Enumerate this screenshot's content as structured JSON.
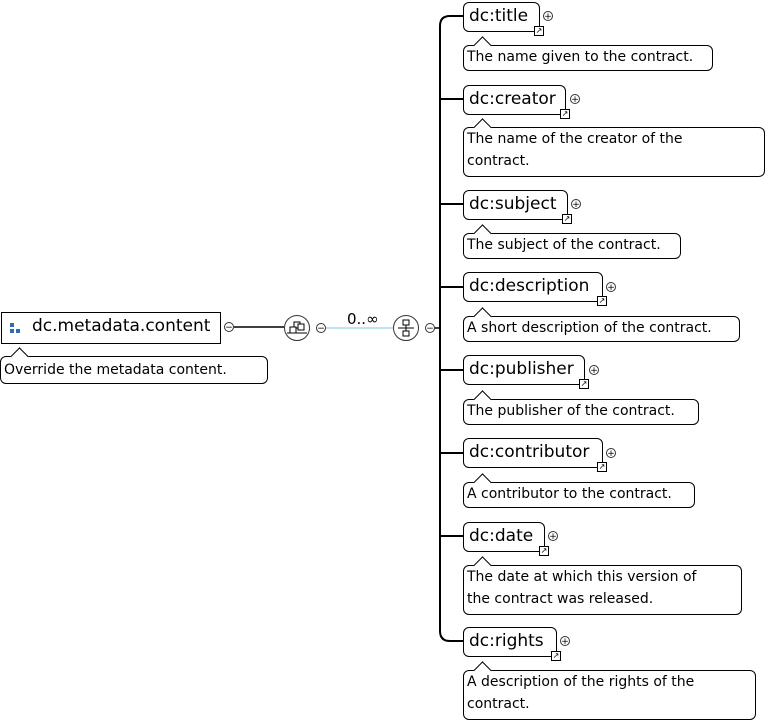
{
  "root": {
    "name": "dc.metadata.content",
    "annotation": "Override the metadata content."
  },
  "sequence": {
    "occurrence": "0..∞"
  },
  "children": [
    {
      "name": "dc:title",
      "annotation": [
        "The name given to the contract."
      ]
    },
    {
      "name": "dc:creator",
      "annotation": [
        "The name of the creator of the",
        "contract."
      ]
    },
    {
      "name": "dc:subject",
      "annotation": [
        "The subject of the contract."
      ]
    },
    {
      "name": "dc:description",
      "annotation": [
        "A short description of the contract."
      ]
    },
    {
      "name": "dc:publisher",
      "annotation": [
        "The publisher of the contract."
      ]
    },
    {
      "name": "dc:contributor",
      "annotation": [
        "A contributor to the contract."
      ]
    },
    {
      "name": "dc:date",
      "annotation": [
        "The date at which this version of",
        "the contract was released."
      ]
    },
    {
      "name": "dc:rights",
      "annotation": [
        "A description of the rights of the",
        "contract."
      ]
    }
  ],
  "colors": {
    "line": "#000000",
    "connector": "#7ec8e3",
    "icon": "#2a6db5"
  }
}
